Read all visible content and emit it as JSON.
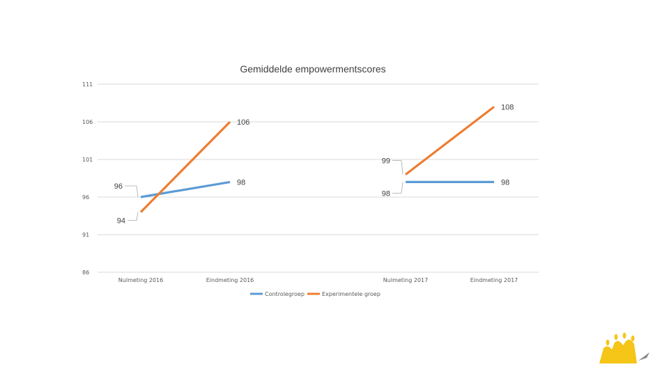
{
  "chart_data": {
    "type": "line",
    "title": "Gemiddelde empowermentscores",
    "xlabel": "",
    "ylabel": "",
    "yticks": [
      "86",
      "91",
      "96",
      "101",
      "106",
      "111"
    ],
    "ylim": [
      86,
      111
    ],
    "grid": true,
    "legend_position": "bottom",
    "categories": [
      "Nulmeting 2016",
      "Eindmeting 2016",
      "Nulmeting 2017",
      "Eindmeting 2017"
    ],
    "series": [
      {
        "name": "Controlegroep",
        "color": "#5B9BD5",
        "segments": [
          {
            "points": [
              {
                "x": "Nulmeting 2016",
                "y": 96
              },
              {
                "x": "Eindmeting 2016",
                "y": 98
              }
            ],
            "labels": [
              "96",
              "98"
            ]
          },
          {
            "points": [
              {
                "x": "Nulmeting 2017",
                "y": 98
              },
              {
                "x": "Eindmeting 2017",
                "y": 98
              }
            ],
            "labels": [
              "98",
              "98"
            ]
          }
        ]
      },
      {
        "name": "Experimentele groep",
        "color": "#ED7D31",
        "segments": [
          {
            "points": [
              {
                "x": "Nulmeting 2016",
                "y": 94
              },
              {
                "x": "Eindmeting 2016",
                "y": 106
              }
            ],
            "labels": [
              "94",
              "106"
            ]
          },
          {
            "points": [
              {
                "x": "Nulmeting 2017",
                "y": 99
              },
              {
                "x": "Eindmeting 2017",
                "y": 108
              }
            ],
            "labels": [
              "99",
              "108"
            ]
          }
        ]
      }
    ]
  },
  "logo": {
    "icon": "sun-logo-icon",
    "color": "#F5C518"
  }
}
